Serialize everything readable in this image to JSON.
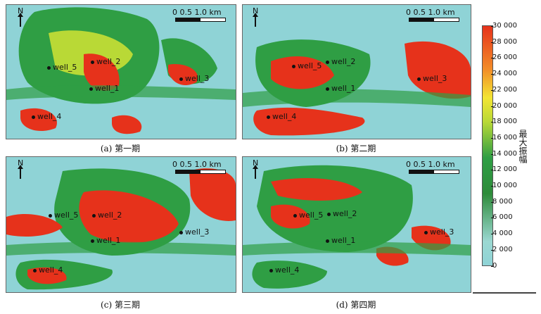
{
  "panels": [
    {
      "caption": "(a) 第一期",
      "north": "N",
      "scale": "0  0.5  1.0 km",
      "wells": [
        {
          "label": "well_5"
        },
        {
          "label": "well_2"
        },
        {
          "label": "well_1"
        },
        {
          "label": "well_3"
        },
        {
          "label": "well_4"
        }
      ]
    },
    {
      "caption": "(b) 第二期",
      "north": "N",
      "scale": "0  0.5  1.0 km",
      "wells": [
        {
          "label": "well_5"
        },
        {
          "label": "well_2"
        },
        {
          "label": "well_1"
        },
        {
          "label": "well_3"
        },
        {
          "label": "well_4"
        }
      ]
    },
    {
      "caption": "(c) 第三期",
      "north": "N",
      "scale": "0  0.5  1.0 km",
      "wells": [
        {
          "label": "well_5"
        },
        {
          "label": "well_2"
        },
        {
          "label": "well_1"
        },
        {
          "label": "well_3"
        },
        {
          "label": "well_4"
        }
      ]
    },
    {
      "caption": "(d) 第四期",
      "north": "N",
      "scale": "0  0.5  1.0 km",
      "wells": [
        {
          "label": "well_5"
        },
        {
          "label": "well_2"
        },
        {
          "label": "well_1"
        },
        {
          "label": "well_3"
        },
        {
          "label": "well_4"
        }
      ]
    }
  ],
  "colorbar": {
    "title": "最大振幅",
    "ticks": [
      "30 000",
      "28 000",
      "26 000",
      "24 000",
      "22 000",
      "20 000",
      "18 000",
      "16 000",
      "14 000",
      "12 000",
      "10 000",
      "8 000",
      "6 000",
      "4 000",
      "2 000",
      "0"
    ],
    "colors": [
      "#8fd3d6",
      "#2f9e44",
      "#f3e533",
      "#f28c28",
      "#e6321b"
    ]
  }
}
